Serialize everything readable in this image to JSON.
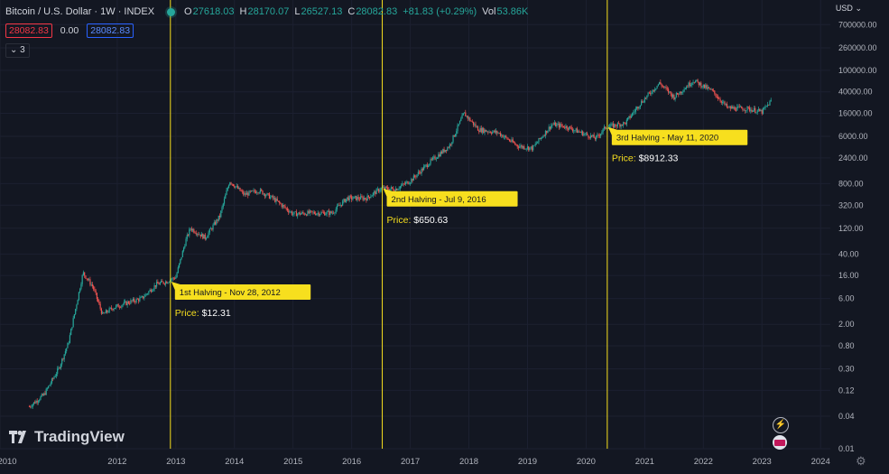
{
  "header": {
    "title": "Bitcoin / U.S. Dollar · 1W · INDEX",
    "open_label": "O",
    "open": "27618.03",
    "high_label": "H",
    "high": "28170.07",
    "low_label": "L",
    "low": "26527.13",
    "close_label": "C",
    "close": "28082.83",
    "change": "+81.83 (+0.29%)",
    "vol_label": "Vol",
    "vol": "53.86K",
    "bid": "28082.83",
    "spread": "0.00",
    "ask": "28082.83",
    "indicators": "3"
  },
  "currency": "USD",
  "brand": "TradingView",
  "colors": {
    "up": "#26a69a",
    "down": "#ef5350",
    "halving": "#f7df1e",
    "background": "#131722"
  },
  "chart_data": {
    "type": "candlestick",
    "scale": "log",
    "ylim": [
      0.01,
      1000000
    ],
    "xlim": [
      "2010-01",
      "2024-03"
    ],
    "grid": true,
    "x_ticks": [
      "2010",
      "2012",
      "2013",
      "2014",
      "2015",
      "2016",
      "2017",
      "2018",
      "2019",
      "2020",
      "2021",
      "2022",
      "2023",
      "2024"
    ],
    "y_ticks": [
      "700000.00",
      "260000.00",
      "100000.00",
      "40000.00",
      "16000.00",
      "6000.00",
      "2400.00",
      "800.00",
      "320.00",
      "120.00",
      "40.00",
      "16.00",
      "6.00",
      "2.00",
      "0.80",
      "0.30",
      "0.12",
      "0.04",
      "0.01"
    ],
    "halvings": [
      {
        "label": "1st Halving - Nov 28, 2012",
        "price_label": "Price:",
        "price": "$12.31",
        "date": "2012-11-28",
        "value": 12.31
      },
      {
        "label": "2nd Halving - Jul 9, 2016",
        "price_label": "Price:",
        "price": "$650.63",
        "date": "2016-07-09",
        "value": 650.63
      },
      {
        "label": "3rd Halving - May 11, 2020",
        "price_label": "Price:",
        "price": "$8912.33",
        "date": "2020-05-11",
        "value": 8912.33
      }
    ],
    "series": [
      {
        "x": [
          "2010-07",
          "2010-10",
          "2011-01",
          "2011-03",
          "2011-06",
          "2011-08",
          "2011-10",
          "2011-12",
          "2012-03",
          "2012-06",
          "2012-09",
          "2012-11",
          "2013-01",
          "2013-03",
          "2013-04",
          "2013-07",
          "2013-10",
          "2013-12",
          "2014-03",
          "2014-06",
          "2014-09",
          "2015-01",
          "2015-05",
          "2015-09",
          "2015-12",
          "2016-04",
          "2016-07",
          "2016-10",
          "2017-01",
          "2017-05",
          "2017-09",
          "2017-12",
          "2018-03",
          "2018-07",
          "2018-11",
          "2019-02",
          "2019-06",
          "2019-09",
          "2019-12",
          "2020-03",
          "2020-05",
          "2020-09",
          "2020-12",
          "2021-04",
          "2021-07",
          "2021-11",
          "2022-03",
          "2022-06",
          "2022-10",
          "2023-01",
          "2023-03"
        ],
        "values": [
          0.06,
          0.1,
          0.3,
          0.9,
          18,
          10,
          3,
          4,
          5,
          6,
          11,
          12.3,
          15,
          70,
          120,
          80,
          200,
          900,
          500,
          600,
          420,
          220,
          230,
          230,
          430,
          430,
          650,
          640,
          900,
          2000,
          4000,
          16000,
          8000,
          7000,
          4000,
          3600,
          10000,
          9000,
          7000,
          5500,
          8900,
          10500,
          24000,
          58000,
          32000,
          65000,
          40000,
          20000,
          19500,
          17000,
          28000
        ]
      }
    ]
  }
}
